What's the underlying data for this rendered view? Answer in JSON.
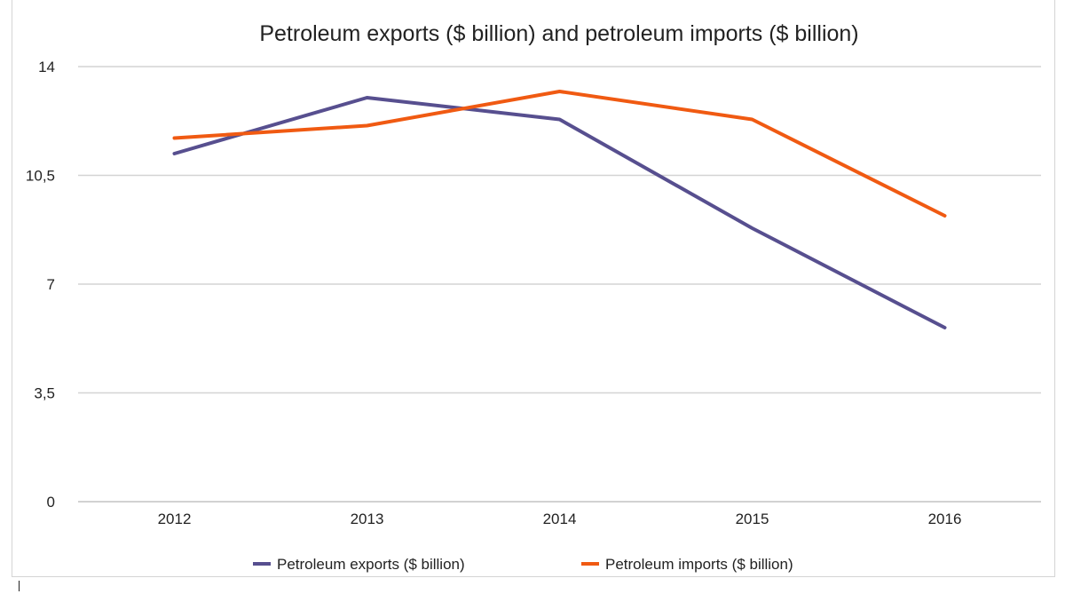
{
  "chart_data": {
    "type": "line",
    "title": "Petroleum exports ($ billion) and petroleum imports ($ billion)",
    "xlabel": "",
    "ylabel": "",
    "categories": [
      "2012",
      "2013",
      "2014",
      "2015",
      "2016"
    ],
    "ylim": [
      0,
      14
    ],
    "yticks": [
      "0",
      "3,5",
      "7",
      "10,5",
      "14"
    ],
    "ytick_values": [
      0,
      3.5,
      7,
      10.5,
      14
    ],
    "grid": true,
    "legend_position": "bottom",
    "series": [
      {
        "name": "Petroleum exports ($ billion)",
        "color": "#574f8f",
        "values": [
          11.2,
          13.0,
          12.3,
          8.8,
          5.6
        ]
      },
      {
        "name": "Petroleum imports ($ billion)",
        "color": "#f05a12",
        "values": [
          11.7,
          12.1,
          13.2,
          12.3,
          9.2
        ]
      }
    ]
  }
}
